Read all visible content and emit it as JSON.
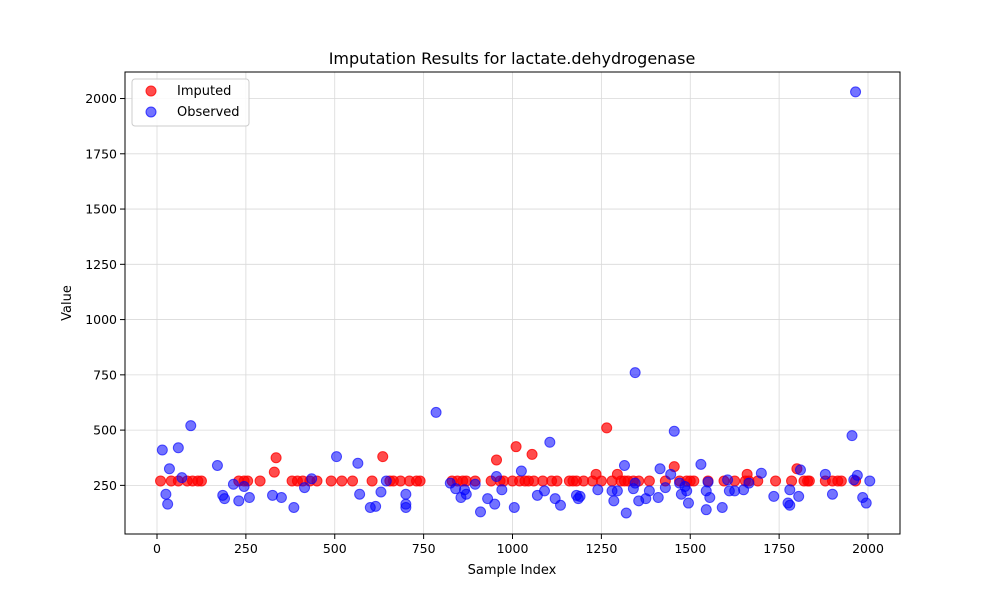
{
  "chart_data": {
    "type": "scatter",
    "title": "Imputation Results for lactate.dehydrogenase",
    "xlabel": "Sample Index",
    "ylabel": "Value",
    "xlim": [
      -90,
      2090
    ],
    "ylim": [
      30,
      2120
    ],
    "xticks": [
      0,
      250,
      500,
      750,
      1000,
      1250,
      1500,
      1750,
      2000
    ],
    "yticks": [
      250,
      500,
      750,
      1000,
      1250,
      1500,
      1750,
      2000
    ],
    "grid": true,
    "legend_position": "top-left",
    "series": [
      {
        "name": "Imputed",
        "color": "#ff0000",
        "points": [
          [
            10,
            270
          ],
          [
            40,
            270
          ],
          [
            60,
            270
          ],
          [
            85,
            270
          ],
          [
            100,
            270
          ],
          [
            115,
            270
          ],
          [
            125,
            270
          ],
          [
            230,
            270
          ],
          [
            245,
            270
          ],
          [
            255,
            270
          ],
          [
            290,
            270
          ],
          [
            330,
            310
          ],
          [
            335,
            375
          ],
          [
            380,
            270
          ],
          [
            395,
            270
          ],
          [
            410,
            270
          ],
          [
            430,
            270
          ],
          [
            450,
            270
          ],
          [
            490,
            270
          ],
          [
            520,
            270
          ],
          [
            550,
            270
          ],
          [
            605,
            270
          ],
          [
            635,
            380
          ],
          [
            655,
            270
          ],
          [
            665,
            270
          ],
          [
            685,
            270
          ],
          [
            710,
            270
          ],
          [
            730,
            270
          ],
          [
            740,
            270
          ],
          [
            830,
            270
          ],
          [
            845,
            270
          ],
          [
            860,
            270
          ],
          [
            870,
            270
          ],
          [
            895,
            270
          ],
          [
            940,
            270
          ],
          [
            955,
            365
          ],
          [
            965,
            270
          ],
          [
            975,
            270
          ],
          [
            1000,
            270
          ],
          [
            1010,
            425
          ],
          [
            1020,
            270
          ],
          [
            1035,
            270
          ],
          [
            1045,
            270
          ],
          [
            1055,
            390
          ],
          [
            1060,
            270
          ],
          [
            1085,
            270
          ],
          [
            1110,
            270
          ],
          [
            1125,
            270
          ],
          [
            1160,
            270
          ],
          [
            1170,
            270
          ],
          [
            1180,
            270
          ],
          [
            1200,
            270
          ],
          [
            1225,
            270
          ],
          [
            1235,
            300
          ],
          [
            1250,
            270
          ],
          [
            1265,
            510
          ],
          [
            1280,
            270
          ],
          [
            1295,
            300
          ],
          [
            1305,
            270
          ],
          [
            1315,
            270
          ],
          [
            1325,
            270
          ],
          [
            1340,
            270
          ],
          [
            1355,
            270
          ],
          [
            1385,
            270
          ],
          [
            1430,
            270
          ],
          [
            1455,
            335
          ],
          [
            1470,
            270
          ],
          [
            1490,
            270
          ],
          [
            1500,
            270
          ],
          [
            1510,
            270
          ],
          [
            1550,
            270
          ],
          [
            1595,
            270
          ],
          [
            1625,
            270
          ],
          [
            1655,
            270
          ],
          [
            1660,
            300
          ],
          [
            1665,
            270
          ],
          [
            1690,
            270
          ],
          [
            1740,
            270
          ],
          [
            1785,
            270
          ],
          [
            1800,
            325
          ],
          [
            1820,
            270
          ],
          [
            1830,
            270
          ],
          [
            1835,
            270
          ],
          [
            1880,
            270
          ],
          [
            1900,
            270
          ],
          [
            1915,
            270
          ],
          [
            1925,
            270
          ],
          [
            1965,
            270
          ]
        ]
      },
      {
        "name": "Observed",
        "color": "#0000ff",
        "points": [
          [
            15,
            410
          ],
          [
            25,
            210
          ],
          [
            30,
            165
          ],
          [
            35,
            325
          ],
          [
            60,
            420
          ],
          [
            70,
            285
          ],
          [
            95,
            520
          ],
          [
            170,
            340
          ],
          [
            185,
            205
          ],
          [
            190,
            190
          ],
          [
            215,
            255
          ],
          [
            230,
            180
          ],
          [
            245,
            245
          ],
          [
            260,
            195
          ],
          [
            325,
            205
          ],
          [
            350,
            195
          ],
          [
            385,
            150
          ],
          [
            415,
            240
          ],
          [
            435,
            280
          ],
          [
            505,
            380
          ],
          [
            565,
            350
          ],
          [
            570,
            210
          ],
          [
            600,
            150
          ],
          [
            615,
            155
          ],
          [
            630,
            220
          ],
          [
            645,
            270
          ],
          [
            700,
            150
          ],
          [
            700,
            165
          ],
          [
            700,
            210
          ],
          [
            785,
            580
          ],
          [
            825,
            260
          ],
          [
            840,
            235
          ],
          [
            855,
            195
          ],
          [
            865,
            230
          ],
          [
            870,
            210
          ],
          [
            895,
            255
          ],
          [
            910,
            130
          ],
          [
            930,
            190
          ],
          [
            950,
            165
          ],
          [
            955,
            290
          ],
          [
            970,
            230
          ],
          [
            1005,
            150
          ],
          [
            1025,
            315
          ],
          [
            1070,
            205
          ],
          [
            1090,
            225
          ],
          [
            1105,
            445
          ],
          [
            1120,
            190
          ],
          [
            1135,
            160
          ],
          [
            1180,
            205
          ],
          [
            1185,
            190
          ],
          [
            1190,
            200
          ],
          [
            1240,
            230
          ],
          [
            1280,
            225
          ],
          [
            1285,
            180
          ],
          [
            1295,
            225
          ],
          [
            1315,
            340
          ],
          [
            1320,
            125
          ],
          [
            1340,
            235
          ],
          [
            1345,
            760
          ],
          [
            1345,
            260
          ],
          [
            1355,
            180
          ],
          [
            1375,
            190
          ],
          [
            1385,
            225
          ],
          [
            1410,
            195
          ],
          [
            1415,
            325
          ],
          [
            1430,
            240
          ],
          [
            1445,
            300
          ],
          [
            1455,
            495
          ],
          [
            1470,
            260
          ],
          [
            1475,
            210
          ],
          [
            1485,
            245
          ],
          [
            1490,
            225
          ],
          [
            1495,
            170
          ],
          [
            1530,
            345
          ],
          [
            1545,
            140
          ],
          [
            1545,
            225
          ],
          [
            1550,
            265
          ],
          [
            1555,
            195
          ],
          [
            1590,
            150
          ],
          [
            1605,
            275
          ],
          [
            1610,
            225
          ],
          [
            1625,
            225
          ],
          [
            1650,
            230
          ],
          [
            1665,
            260
          ],
          [
            1700,
            305
          ],
          [
            1735,
            200
          ],
          [
            1775,
            170
          ],
          [
            1780,
            160
          ],
          [
            1780,
            230
          ],
          [
            1805,
            200
          ],
          [
            1810,
            320
          ],
          [
            1880,
            300
          ],
          [
            1900,
            210
          ],
          [
            1955,
            475
          ],
          [
            1960,
            275
          ],
          [
            1965,
            2030
          ],
          [
            1970,
            295
          ],
          [
            1985,
            195
          ],
          [
            1995,
            170
          ],
          [
            2005,
            270
          ]
        ]
      }
    ]
  }
}
